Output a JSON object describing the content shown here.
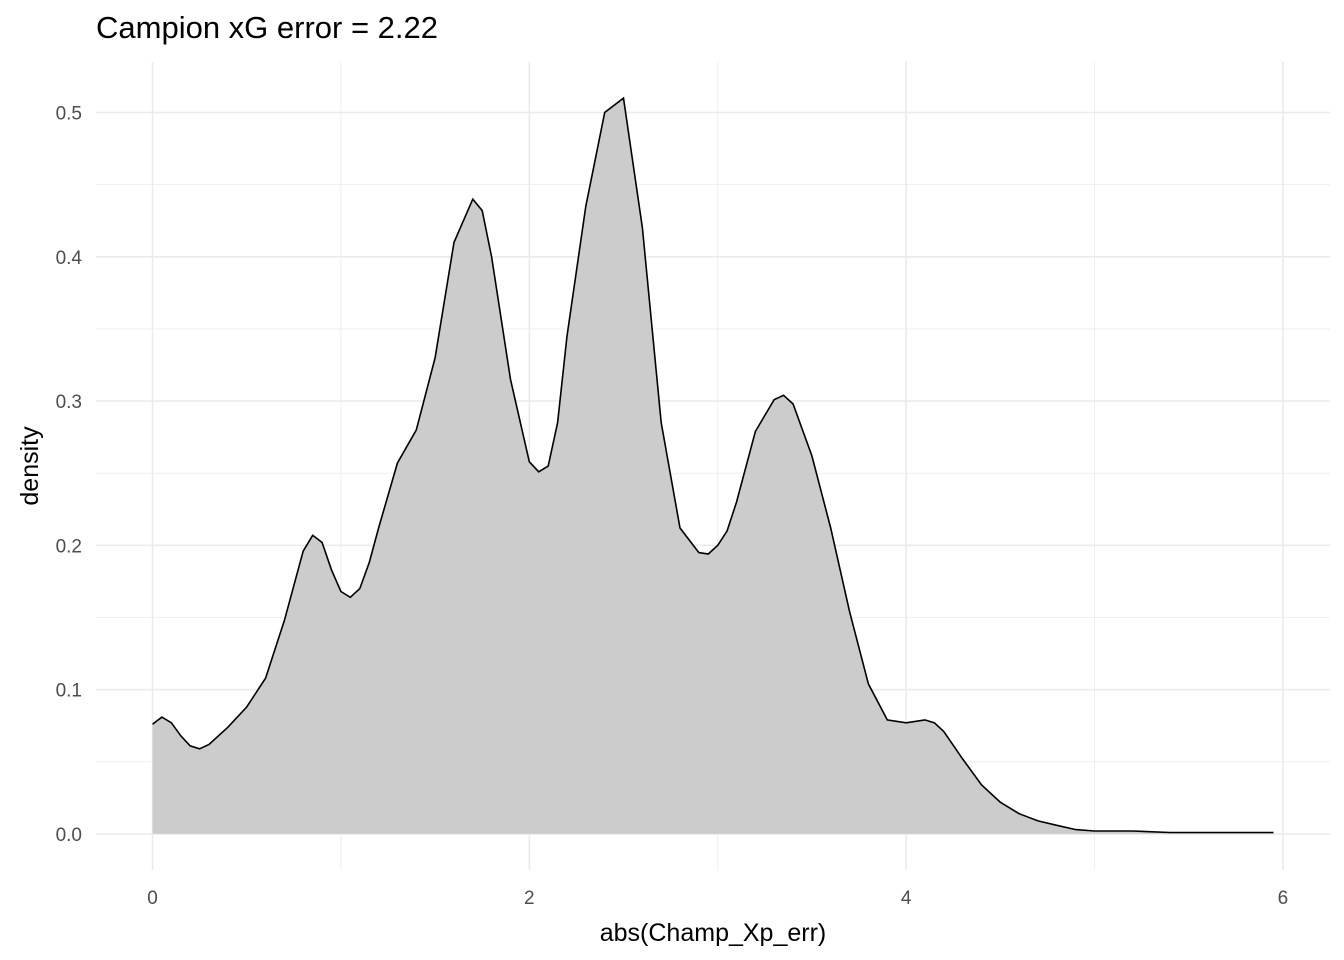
{
  "chart_data": {
    "type": "area",
    "title": "Campion xG error = 2.22",
    "xlabel": "abs(Champ_Xp_err)",
    "ylabel": "density",
    "xlim": [
      -0.3,
      6.25
    ],
    "ylim": [
      -0.025,
      0.535
    ],
    "x_ticks": [
      0,
      2,
      4,
      6
    ],
    "y_ticks": [
      0.0,
      0.1,
      0.2,
      0.3,
      0.4,
      0.5
    ],
    "x_tick_labels": [
      "0",
      "2",
      "4",
      "6"
    ],
    "y_tick_labels": [
      "0.0",
      "0.1",
      "0.2",
      "0.3",
      "0.4",
      "0.5"
    ],
    "grid": true,
    "fill_color": "#cccccc",
    "line_color": "#000000",
    "grid_color": "#ebebeb",
    "x": [
      0.0,
      0.05,
      0.1,
      0.15,
      0.2,
      0.25,
      0.3,
      0.4,
      0.5,
      0.6,
      0.7,
      0.8,
      0.85,
      0.9,
      0.95,
      1.0,
      1.05,
      1.1,
      1.15,
      1.2,
      1.3,
      1.4,
      1.5,
      1.6,
      1.7,
      1.75,
      1.8,
      1.9,
      2.0,
      2.05,
      2.1,
      2.15,
      2.2,
      2.3,
      2.4,
      2.5,
      2.6,
      2.7,
      2.8,
      2.9,
      2.95,
      3.0,
      3.05,
      3.1,
      3.2,
      3.3,
      3.35,
      3.4,
      3.5,
      3.6,
      3.7,
      3.8,
      3.9,
      4.0,
      4.1,
      4.15,
      4.2,
      4.3,
      4.4,
      4.5,
      4.6,
      4.7,
      4.8,
      4.9,
      5.0,
      5.2,
      5.4,
      5.6,
      5.8,
      5.95
    ],
    "y": [
      0.076,
      0.081,
      0.077,
      0.068,
      0.061,
      0.059,
      0.062,
      0.074,
      0.088,
      0.108,
      0.148,
      0.196,
      0.207,
      0.202,
      0.183,
      0.168,
      0.164,
      0.17,
      0.188,
      0.212,
      0.257,
      0.28,
      0.33,
      0.41,
      0.44,
      0.432,
      0.4,
      0.315,
      0.258,
      0.251,
      0.255,
      0.285,
      0.345,
      0.435,
      0.5,
      0.51,
      0.42,
      0.285,
      0.212,
      0.195,
      0.194,
      0.2,
      0.21,
      0.23,
      0.279,
      0.301,
      0.304,
      0.298,
      0.262,
      0.212,
      0.154,
      0.104,
      0.079,
      0.077,
      0.079,
      0.077,
      0.071,
      0.052,
      0.034,
      0.022,
      0.014,
      0.009,
      0.006,
      0.003,
      0.002,
      0.002,
      0.001,
      0.001,
      0.001,
      0.001
    ]
  }
}
